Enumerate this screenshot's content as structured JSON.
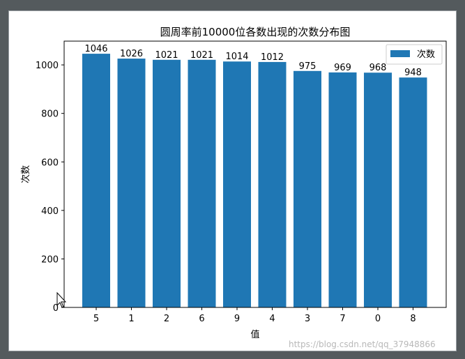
{
  "chart_data": {
    "type": "bar",
    "title": "圆周率前10000位各数出现的次数分布图",
    "xlabel": "值",
    "ylabel": "次数",
    "categories": [
      "5",
      "1",
      "2",
      "6",
      "9",
      "4",
      "3",
      "7",
      "0",
      "8"
    ],
    "series": [
      {
        "name": "次数",
        "values": [
          1046,
          1026,
          1021,
          1021,
          1014,
          1012,
          975,
          969,
          968,
          948
        ]
      }
    ],
    "data_labels": [
      "1046",
      "1026",
      "1021",
      "1021",
      "1014",
      "1012",
      "975",
      "969",
      "968",
      "948"
    ],
    "ylim": [
      0,
      1098
    ],
    "yticks": [
      "0",
      "200",
      "400",
      "600",
      "800",
      "1000"
    ],
    "grid": false,
    "legend_position": "top-right",
    "bar_color": "#1f77b4"
  },
  "watermark": "https://blog.csdn.net/qq_37948866"
}
